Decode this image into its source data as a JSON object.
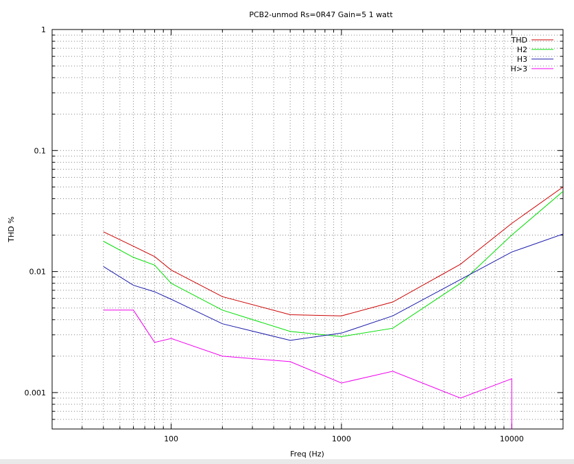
{
  "chart_data": {
    "type": "line",
    "title": "PCB2-unmod   Rs=0R47 Gain=5 1 watt",
    "xlabel": "Freq (Hz)",
    "ylabel": "THD %",
    "x_scale": "log",
    "y_scale": "log",
    "xlim": [
      20,
      20000
    ],
    "ylim": [
      0.0005,
      1
    ],
    "x_ticks": [
      {
        "value": 100,
        "label": "100"
      },
      {
        "value": 1000,
        "label": "1000"
      },
      {
        "value": 10000,
        "label": "10000"
      }
    ],
    "y_ticks": [
      {
        "value": 1,
        "label": "1"
      },
      {
        "value": 0.1,
        "label": "0.1"
      },
      {
        "value": 0.01,
        "label": "0.01"
      },
      {
        "value": 0.001,
        "label": "0.001"
      }
    ],
    "grid": true,
    "legend_position": "top-right",
    "series": [
      {
        "name": "THD",
        "color": "#cc0000",
        "points": [
          [
            40,
            0.0213
          ],
          [
            60,
            0.0162
          ],
          [
            80,
            0.0133
          ],
          [
            100,
            0.0103
          ],
          [
            200,
            0.0062
          ],
          [
            500,
            0.0044
          ],
          [
            1000,
            0.0043
          ],
          [
            2000,
            0.0056
          ],
          [
            5000,
            0.0115
          ],
          [
            10000,
            0.025
          ],
          [
            20000,
            0.05
          ]
        ]
      },
      {
        "name": "H2",
        "color": "#00dd00",
        "points": [
          [
            40,
            0.0178
          ],
          [
            60,
            0.0131
          ],
          [
            80,
            0.0113
          ],
          [
            100,
            0.008
          ],
          [
            200,
            0.0048
          ],
          [
            500,
            0.0032
          ],
          [
            1000,
            0.0029
          ],
          [
            2000,
            0.0034
          ],
          [
            5000,
            0.008
          ],
          [
            10000,
            0.02
          ],
          [
            20000,
            0.046
          ]
        ]
      },
      {
        "name": "H3",
        "color": "#1a1aaa",
        "points": [
          [
            40,
            0.011
          ],
          [
            60,
            0.0077
          ],
          [
            80,
            0.0068
          ],
          [
            100,
            0.0059
          ],
          [
            200,
            0.0037
          ],
          [
            500,
            0.0027
          ],
          [
            1000,
            0.0031
          ],
          [
            2000,
            0.0043
          ],
          [
            5000,
            0.0086
          ],
          [
            10000,
            0.0145
          ],
          [
            20000,
            0.0204
          ]
        ]
      },
      {
        "name": "H>3",
        "color": "#ee00ee",
        "points": [
          [
            40,
            0.0048
          ],
          [
            60,
            0.0048
          ],
          [
            80,
            0.0026
          ],
          [
            100,
            0.0028
          ],
          [
            200,
            0.002
          ],
          [
            500,
            0.0018
          ],
          [
            1000,
            0.0012
          ],
          [
            2000,
            0.0015
          ],
          [
            5000,
            0.0009
          ],
          [
            10000,
            0.0013
          ],
          [
            10000,
            0.0005
          ]
        ]
      }
    ]
  }
}
